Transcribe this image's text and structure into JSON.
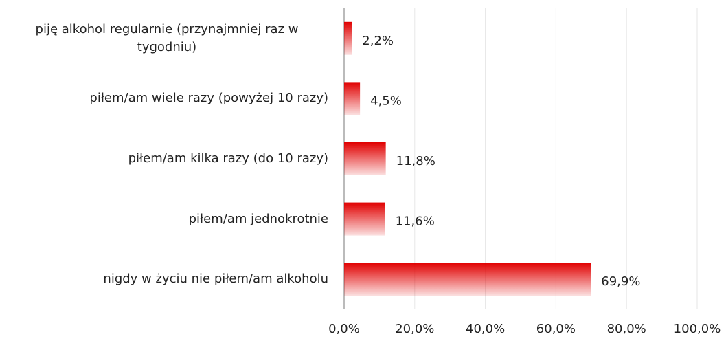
{
  "chart_data": {
    "type": "hbar",
    "categories": [
      "piję alkohol regularnie (przynajmniej raz w tygodniu)",
      "piłem/am wiele razy (powyżej 10 razy)",
      "piłem/am kilka razy (do 10 razy)",
      "piłem/am jednokrotnie",
      "nigdy w życiu nie piłem/am alkoholu"
    ],
    "values": [
      2.2,
      4.5,
      11.8,
      11.6,
      69.9
    ],
    "value_labels": [
      "2,2%",
      "4,5%",
      "11,8%",
      "11,6%",
      "69,9%"
    ],
    "color": "#e00000",
    "xlim": [
      0,
      100
    ],
    "xticks": [
      {
        "value": 0,
        "label": "0,0%"
      },
      {
        "value": 20,
        "label": "20,0%"
      },
      {
        "value": 40,
        "label": "40,0%"
      },
      {
        "value": 60,
        "label": "60,0%"
      },
      {
        "value": 80,
        "label": "80,0%"
      },
      {
        "value": 100,
        "label": "100,0%"
      }
    ],
    "grid": true
  }
}
